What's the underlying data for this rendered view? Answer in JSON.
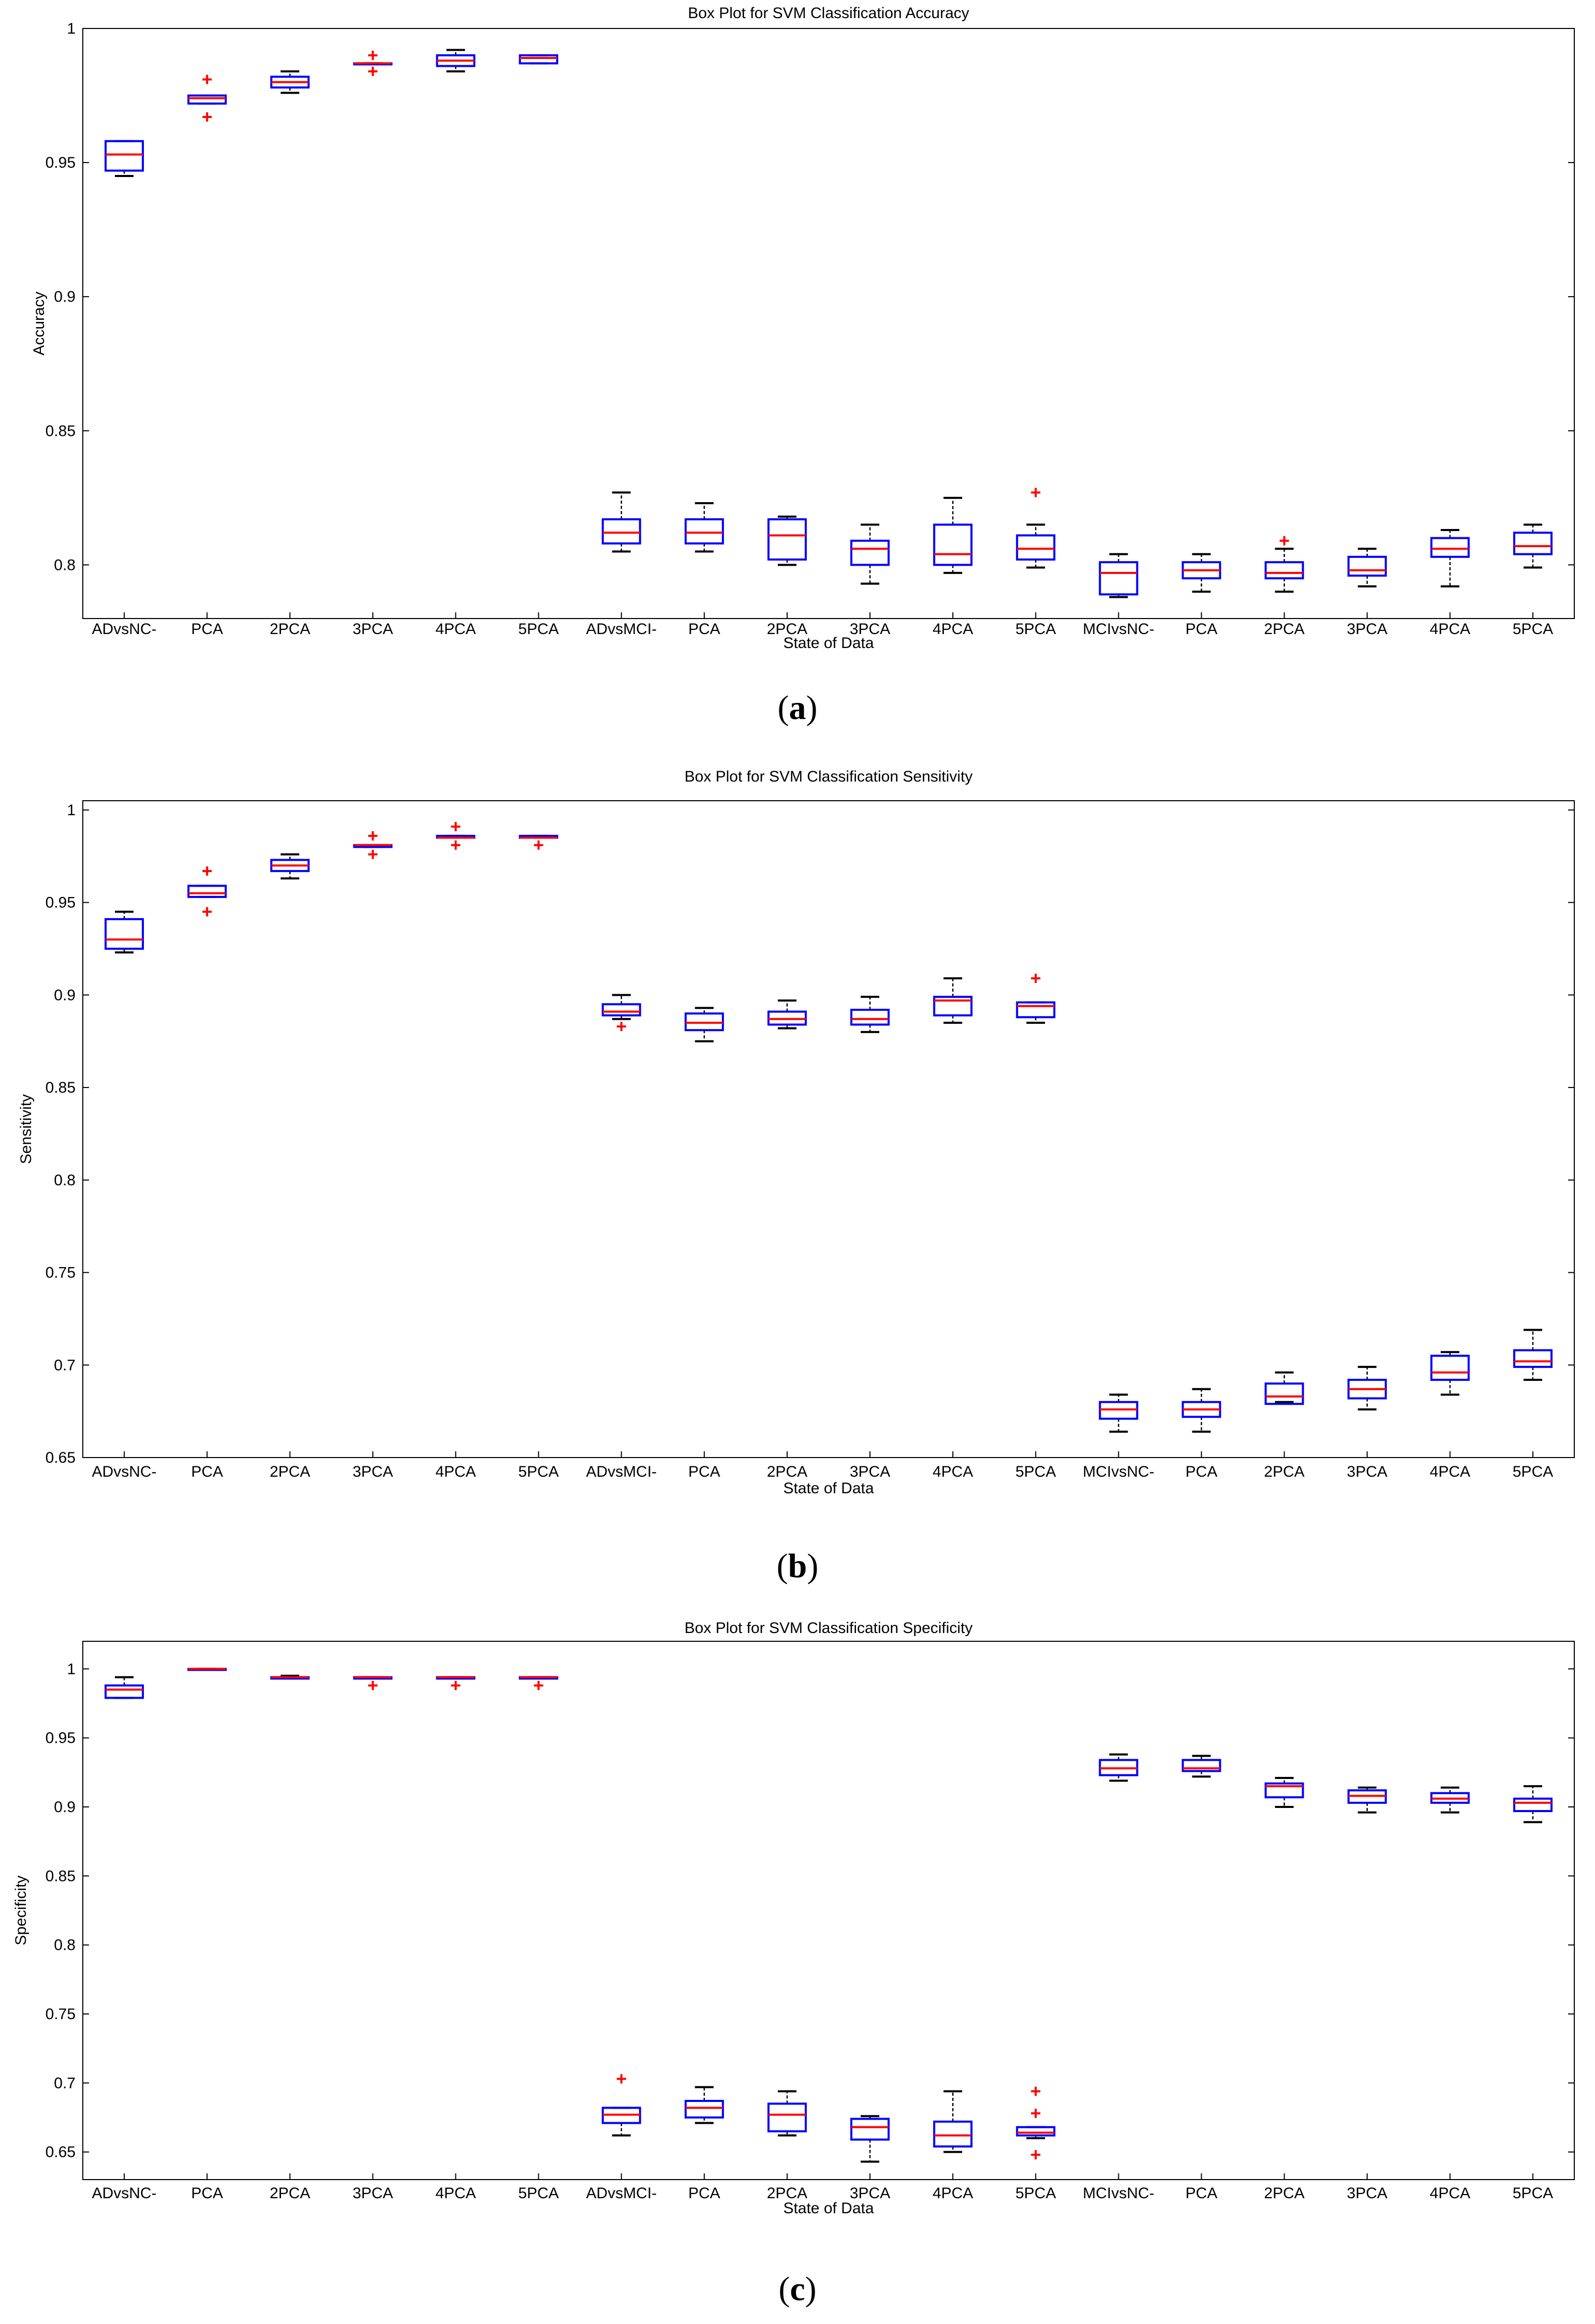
{
  "colors": {
    "box": "#0000ff",
    "median": "#ff0000",
    "whisker": "#000000",
    "outlier": "#ff0000",
    "axis": "#000000"
  },
  "chart_data": [
    {
      "type": "box",
      "panel": "a",
      "caption_letter": "a",
      "title": "Box Plot for SVM Classification Accuracy",
      "xlabel": "State of Data",
      "ylabel": "Accuracy",
      "ylim": [
        0.78,
        1.0
      ],
      "yticks": [
        0.8,
        0.85,
        0.9,
        0.95,
        1
      ],
      "ytick_labels": [
        "0.8",
        "0.85",
        "0.9",
        "0.95",
        "1"
      ],
      "categories": [
        "ADvsNC-",
        "PCA",
        "2PCA",
        "3PCA",
        "4PCA",
        "5PCA",
        "ADvsMCI-",
        "PCA",
        "2PCA",
        "3PCA",
        "4PCA",
        "5PCA",
        "MCIvsNC-",
        "PCA",
        "2PCA",
        "3PCA",
        "4PCA",
        "5PCA"
      ],
      "boxes": [
        {
          "wlo": 0.945,
          "q1": 0.947,
          "med": 0.953,
          "q3": 0.958,
          "whi": 0.958,
          "out": []
        },
        {
          "wlo": 0.972,
          "q1": 0.972,
          "med": 0.974,
          "q3": 0.975,
          "whi": 0.975,
          "out": [
            0.981,
            0.967
          ]
        },
        {
          "wlo": 0.976,
          "q1": 0.978,
          "med": 0.98,
          "q3": 0.982,
          "whi": 0.984,
          "out": []
        },
        {
          "wlo": 0.987,
          "q1": 0.987,
          "med": 0.987,
          "q3": 0.987,
          "whi": 0.987,
          "out": [
            0.99,
            0.984
          ]
        },
        {
          "wlo": 0.984,
          "q1": 0.986,
          "med": 0.988,
          "q3": 0.99,
          "whi": 0.992,
          "out": []
        },
        {
          "wlo": 0.987,
          "q1": 0.987,
          "med": 0.989,
          "q3": 0.99,
          "whi": 0.99,
          "out": []
        },
        {
          "wlo": 0.805,
          "q1": 0.808,
          "med": 0.812,
          "q3": 0.817,
          "whi": 0.827,
          "out": []
        },
        {
          "wlo": 0.805,
          "q1": 0.808,
          "med": 0.812,
          "q3": 0.817,
          "whi": 0.823,
          "out": []
        },
        {
          "wlo": 0.8,
          "q1": 0.802,
          "med": 0.811,
          "q3": 0.817,
          "whi": 0.818,
          "out": []
        },
        {
          "wlo": 0.793,
          "q1": 0.8,
          "med": 0.806,
          "q3": 0.809,
          "whi": 0.815,
          "out": []
        },
        {
          "wlo": 0.797,
          "q1": 0.8,
          "med": 0.804,
          "q3": 0.815,
          "whi": 0.825,
          "out": []
        },
        {
          "wlo": 0.799,
          "q1": 0.802,
          "med": 0.806,
          "q3": 0.811,
          "whi": 0.815,
          "out": [
            0.827
          ]
        },
        {
          "wlo": 0.788,
          "q1": 0.789,
          "med": 0.797,
          "q3": 0.801,
          "whi": 0.804,
          "out": []
        },
        {
          "wlo": 0.79,
          "q1": 0.795,
          "med": 0.798,
          "q3": 0.801,
          "whi": 0.804,
          "out": []
        },
        {
          "wlo": 0.79,
          "q1": 0.795,
          "med": 0.797,
          "q3": 0.801,
          "whi": 0.806,
          "out": [
            0.809
          ]
        },
        {
          "wlo": 0.792,
          "q1": 0.796,
          "med": 0.798,
          "q3": 0.803,
          "whi": 0.806,
          "out": []
        },
        {
          "wlo": 0.792,
          "q1": 0.803,
          "med": 0.806,
          "q3": 0.81,
          "whi": 0.813,
          "out": []
        },
        {
          "wlo": 0.799,
          "q1": 0.804,
          "med": 0.807,
          "q3": 0.812,
          "whi": 0.815,
          "out": []
        }
      ]
    },
    {
      "type": "box",
      "panel": "b",
      "caption_letter": "b",
      "title": "Box Plot for SVM Classification Sensitivity",
      "xlabel": "State of Data",
      "ylabel": "Sensitivity",
      "ylim": [
        0.65,
        1.005
      ],
      "yticks": [
        0.65,
        0.7,
        0.75,
        0.8,
        0.85,
        0.9,
        0.95,
        1
      ],
      "ytick_labels": [
        "0.65",
        "0.7",
        "0.75",
        "0.8",
        "0.85",
        "0.9",
        "0.95",
        "1"
      ],
      "categories": [
        "ADvsNC-",
        "PCA",
        "2PCA",
        "3PCA",
        "4PCA",
        "5PCA",
        "ADvsMCI-",
        "PCA",
        "2PCA",
        "3PCA",
        "4PCA",
        "5PCA",
        "MCIvsNC-",
        "PCA",
        "2PCA",
        "3PCA",
        "4PCA",
        "5PCA"
      ],
      "boxes": [
        {
          "wlo": 0.923,
          "q1": 0.925,
          "med": 0.93,
          "q3": 0.941,
          "whi": 0.945,
          "out": []
        },
        {
          "wlo": 0.953,
          "q1": 0.953,
          "med": 0.955,
          "q3": 0.959,
          "whi": 0.959,
          "out": [
            0.967,
            0.945
          ]
        },
        {
          "wlo": 0.963,
          "q1": 0.967,
          "med": 0.97,
          "q3": 0.973,
          "whi": 0.976,
          "out": []
        },
        {
          "wlo": 0.98,
          "q1": 0.98,
          "med": 0.981,
          "q3": 0.981,
          "whi": 0.981,
          "out": [
            0.986,
            0.976
          ]
        },
        {
          "wlo": 0.985,
          "q1": 0.985,
          "med": 0.985,
          "q3": 0.986,
          "whi": 0.986,
          "out": [
            0.991,
            0.981
          ]
        },
        {
          "wlo": 0.985,
          "q1": 0.985,
          "med": 0.985,
          "q3": 0.986,
          "whi": 0.986,
          "out": [
            0.981
          ]
        },
        {
          "wlo": 0.887,
          "q1": 0.889,
          "med": 0.891,
          "q3": 0.895,
          "whi": 0.9,
          "out": [
            0.883
          ]
        },
        {
          "wlo": 0.875,
          "q1": 0.881,
          "med": 0.885,
          "q3": 0.89,
          "whi": 0.893,
          "out": []
        },
        {
          "wlo": 0.882,
          "q1": 0.884,
          "med": 0.887,
          "q3": 0.891,
          "whi": 0.897,
          "out": []
        },
        {
          "wlo": 0.88,
          "q1": 0.884,
          "med": 0.887,
          "q3": 0.892,
          "whi": 0.899,
          "out": []
        },
        {
          "wlo": 0.885,
          "q1": 0.889,
          "med": 0.897,
          "q3": 0.899,
          "whi": 0.909,
          "out": []
        },
        {
          "wlo": 0.885,
          "q1": 0.888,
          "med": 0.894,
          "q3": 0.896,
          "whi": 0.896,
          "out": [
            0.909
          ]
        },
        {
          "wlo": 0.664,
          "q1": 0.671,
          "med": 0.676,
          "q3": 0.68,
          "whi": 0.684,
          "out": []
        },
        {
          "wlo": 0.664,
          "q1": 0.672,
          "med": 0.676,
          "q3": 0.68,
          "whi": 0.687,
          "out": []
        },
        {
          "wlo": 0.68,
          "q1": 0.679,
          "med": 0.683,
          "q3": 0.69,
          "whi": 0.696,
          "out": []
        },
        {
          "wlo": 0.676,
          "q1": 0.682,
          "med": 0.687,
          "q3": 0.692,
          "whi": 0.699,
          "out": []
        },
        {
          "wlo": 0.684,
          "q1": 0.692,
          "med": 0.696,
          "q3": 0.705,
          "whi": 0.707,
          "out": []
        },
        {
          "wlo": 0.692,
          "q1": 0.699,
          "med": 0.702,
          "q3": 0.708,
          "whi": 0.719,
          "out": []
        }
      ]
    },
    {
      "type": "box",
      "panel": "c",
      "caption_letter": "c",
      "title": "Box Plot for SVM Classification Specificity",
      "xlabel": "State of Data",
      "ylabel": "Specificity",
      "ylim": [
        0.63,
        1.02
      ],
      "yticks": [
        0.65,
        0.7,
        0.75,
        0.8,
        0.85,
        0.9,
        0.95,
        1
      ],
      "ytick_labels": [
        "0.65",
        "0.7",
        "0.75",
        "0.8",
        "0.85",
        "0.9",
        "0.95",
        "1"
      ],
      "categories": [
        "ADvsNC-",
        "PCA",
        "2PCA",
        "3PCA",
        "4PCA",
        "5PCA",
        "ADvsMCI-",
        "PCA",
        "2PCA",
        "3PCA",
        "4PCA",
        "5PCA",
        "MCIvsNC-",
        "PCA",
        "2PCA",
        "3PCA",
        "4PCA",
        "5PCA"
      ],
      "boxes": [
        {
          "wlo": 0.979,
          "q1": 0.979,
          "med": 0.985,
          "q3": 0.988,
          "whi": 0.994,
          "out": []
        },
        {
          "wlo": 1.0,
          "q1": 1.0,
          "med": 1.0,
          "q3": 1.0,
          "whi": 1.0,
          "out": []
        },
        {
          "wlo": 0.993,
          "q1": 0.993,
          "med": 0.994,
          "q3": 0.994,
          "whi": 0.995,
          "out": []
        },
        {
          "wlo": 0.993,
          "q1": 0.993,
          "med": 0.994,
          "q3": 0.994,
          "whi": 0.994,
          "out": [
            0.988
          ]
        },
        {
          "wlo": 0.993,
          "q1": 0.993,
          "med": 0.994,
          "q3": 0.994,
          "whi": 0.994,
          "out": [
            0.988
          ]
        },
        {
          "wlo": 0.993,
          "q1": 0.993,
          "med": 0.994,
          "q3": 0.994,
          "whi": 0.994,
          "out": [
            0.988
          ]
        },
        {
          "wlo": 0.662,
          "q1": 0.671,
          "med": 0.677,
          "q3": 0.682,
          "whi": 0.682,
          "out": [
            0.703
          ]
        },
        {
          "wlo": 0.671,
          "q1": 0.675,
          "med": 0.682,
          "q3": 0.687,
          "whi": 0.697,
          "out": []
        },
        {
          "wlo": 0.662,
          "q1": 0.665,
          "med": 0.677,
          "q3": 0.685,
          "whi": 0.694,
          "out": []
        },
        {
          "wlo": 0.643,
          "q1": 0.659,
          "med": 0.668,
          "q3": 0.674,
          "whi": 0.676,
          "out": []
        },
        {
          "wlo": 0.65,
          "q1": 0.654,
          "med": 0.662,
          "q3": 0.672,
          "whi": 0.694,
          "out": []
        },
        {
          "wlo": 0.66,
          "q1": 0.662,
          "med": 0.664,
          "q3": 0.668,
          "whi": 0.668,
          "out": [
            0.694,
            0.678,
            0.648
          ]
        },
        {
          "wlo": 0.919,
          "q1": 0.923,
          "med": 0.928,
          "q3": 0.934,
          "whi": 0.938,
          "out": []
        },
        {
          "wlo": 0.922,
          "q1": 0.926,
          "med": 0.928,
          "q3": 0.934,
          "whi": 0.937,
          "out": []
        },
        {
          "wlo": 0.9,
          "q1": 0.907,
          "med": 0.915,
          "q3": 0.917,
          "whi": 0.921,
          "out": []
        },
        {
          "wlo": 0.896,
          "q1": 0.903,
          "med": 0.908,
          "q3": 0.912,
          "whi": 0.914,
          "out": []
        },
        {
          "wlo": 0.896,
          "q1": 0.903,
          "med": 0.906,
          "q3": 0.91,
          "whi": 0.914,
          "out": []
        },
        {
          "wlo": 0.889,
          "q1": 0.897,
          "med": 0.903,
          "q3": 0.906,
          "whi": 0.915,
          "out": []
        }
      ]
    }
  ]
}
